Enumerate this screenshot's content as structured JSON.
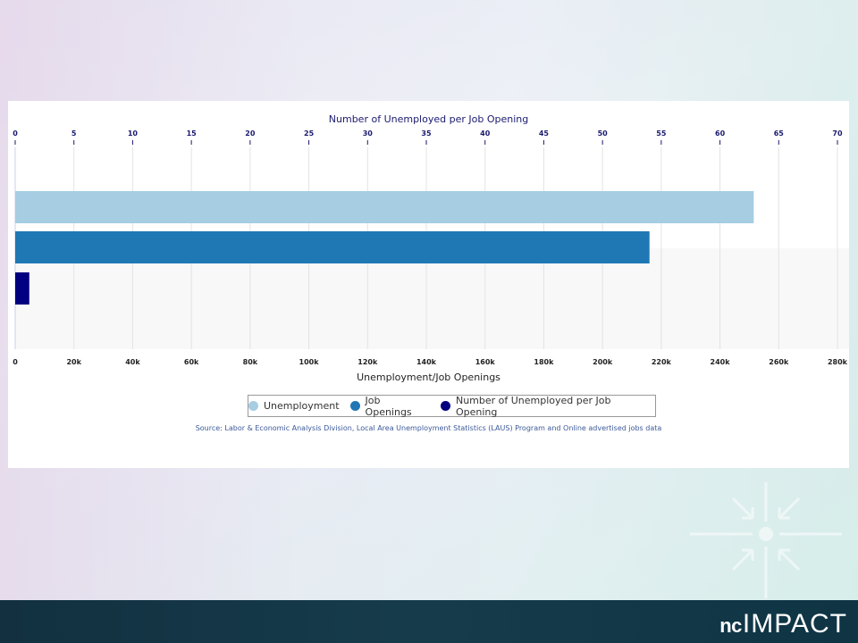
{
  "logo": {
    "nc": "nc",
    "impact": "IMPACT"
  },
  "chart_data": {
    "type": "bar",
    "orientation": "horizontal",
    "title": "Number of Unemployed per Job Opening",
    "xlabel": "Unemployment/Job Openings",
    "x_bottom": {
      "ticks": [
        "0",
        "20k",
        "40k",
        "60k",
        "80k",
        "100k",
        "120k",
        "140k",
        "160k",
        "180k",
        "200k",
        "220k",
        "240k",
        "260k",
        "280k"
      ],
      "range": [
        0,
        280000
      ]
    },
    "x_top": {
      "ticks": [
        "0",
        "5",
        "10",
        "15",
        "20",
        "25",
        "30",
        "35",
        "40",
        "45",
        "50",
        "55",
        "60",
        "65",
        "70"
      ],
      "range": [
        0,
        70
      ]
    },
    "series": [
      {
        "name": "Unemployment",
        "value": 251500,
        "axis": "bottom",
        "color": "#a6cde2"
      },
      {
        "name": "Job Openings",
        "value": 216000,
        "axis": "bottom",
        "color": "#1f78b4"
      },
      {
        "name": "Number of Unemployed per Job Opening",
        "value": 1.2,
        "axis": "top",
        "color": "#000080"
      }
    ],
    "legend_position": "bottom-center",
    "grid": true,
    "source": "Source: Labor & Economic Analysis Division, Local Area Unemployment Statistics (LAUS) Program and Online advertised jobs data"
  }
}
